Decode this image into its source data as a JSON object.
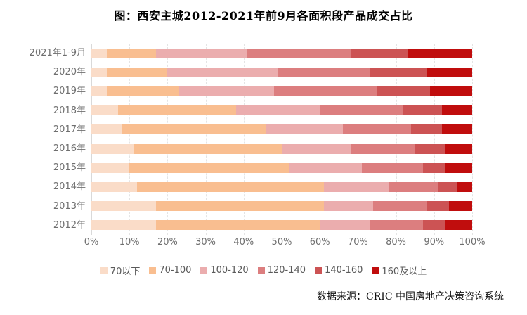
{
  "title": "图：西安主城2012-2021年前9月各面积段产品成交占比",
  "source": "数据来源：CRIC 中国房地产决策咨询系统",
  "chart_data": {
    "type": "bar",
    "orientation": "horizontal",
    "stacked": true,
    "title": "图：西安主城2012-2021年前9月各面积段产品成交占比",
    "categories": [
      "2021年1-9月",
      "2020年",
      "2019年",
      "2018年",
      "2017年",
      "2016年",
      "2015年",
      "2014年",
      "2013年",
      "2012年"
    ],
    "series": [
      {
        "name": "70以下",
        "color": "#FADCC8",
        "values": [
          4,
          4,
          4,
          7,
          8,
          11,
          10,
          12,
          17,
          17
        ]
      },
      {
        "name": "70-100",
        "color": "#F9BE90",
        "values": [
          13,
          16,
          19,
          31,
          38,
          39,
          42,
          49,
          44,
          43
        ]
      },
      {
        "name": "100-120",
        "color": "#EBADAE",
        "values": [
          24,
          29,
          25,
          22,
          20,
          18,
          19,
          17,
          13,
          13
        ]
      },
      {
        "name": "120-140",
        "color": "#DC7E7F",
        "values": [
          27,
          24,
          27,
          22,
          18,
          17,
          16,
          13,
          14,
          14
        ]
      },
      {
        "name": "140-160",
        "color": "#CC5354",
        "values": [
          15,
          15,
          14,
          10,
          8,
          8,
          6,
          5,
          6,
          6
        ]
      },
      {
        "name": "160及以上",
        "color": "#C00D0D",
        "values": [
          17,
          12,
          11,
          8,
          8,
          7,
          7,
          4,
          6,
          7
        ]
      }
    ],
    "x_ticks": [
      "0%",
      "10%",
      "20%",
      "30%",
      "40%",
      "50%",
      "60%",
      "70%",
      "80%",
      "90%",
      "100%"
    ],
    "xlim": [
      0,
      100
    ],
    "unit": "percent",
    "legend_position": "bottom",
    "grid": "vertical-dashed",
    "axis_text_color": "#6f6f6f"
  }
}
